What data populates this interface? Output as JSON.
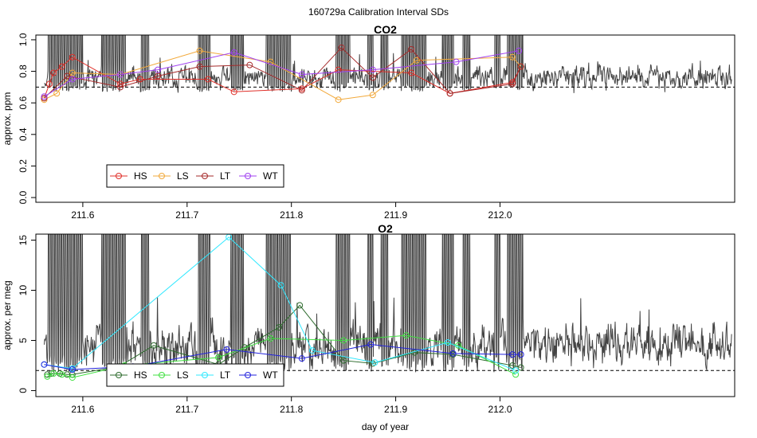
{
  "page": {
    "title": "160729a   Calibration Interval SDs"
  },
  "chart_data": [
    {
      "type": "line",
      "title": "CO2",
      "xlabel": "",
      "ylabel": "approx. ppm",
      "xlim": [
        211.555,
        212.225
      ],
      "ylim": [
        -0.03,
        1.03
      ],
      "xticks": [
        211.6,
        211.7,
        211.8,
        211.9,
        212.0
      ],
      "xtick_labels": [
        "211.6",
        "211.7",
        "211.8",
        "211.9",
        "212.0"
      ],
      "yticks": [
        0.0,
        0.2,
        0.4,
        0.6,
        0.8,
        1.0
      ],
      "ytick_labels": [
        "0.0",
        "0.2",
        "0.4",
        "0.6",
        "0.8",
        "1.0"
      ],
      "reference_line": 0.7,
      "legend": {
        "position": "bottom-left",
        "entries": [
          "HS",
          "LS",
          "LT",
          "WT"
        ]
      },
      "background": {
        "name": "raw signal",
        "color": "#444444",
        "seed": 11,
        "x_start": 211.563,
        "x_end": 212.222,
        "n_points": 1300,
        "base": 0.76,
        "noise": 0.06,
        "spike_ranges": [
          [
            211.567,
            211.6
          ],
          [
            211.618,
            211.642
          ],
          [
            211.655,
            211.664
          ],
          [
            211.71,
            211.722
          ],
          [
            211.742,
            211.754
          ],
          [
            211.776,
            211.8
          ],
          [
            211.842,
            211.856
          ],
          [
            211.872,
            211.879
          ],
          [
            211.886,
            211.893
          ],
          [
            211.905,
            211.93
          ],
          [
            211.945,
            211.956
          ],
          [
            211.964,
            211.971
          ],
          [
            211.994,
            212.0
          ],
          [
            212.007,
            212.022
          ]
        ]
      },
      "series": [
        {
          "name": "HS",
          "color": "#e0302a",
          "x": [
            211.563,
            211.568,
            211.572,
            211.58,
            211.59,
            211.636,
            211.655,
            211.72,
            211.745,
            211.81,
            211.845,
            211.915,
            211.952,
            212.012,
            212.02
          ],
          "values": [
            0.63,
            0.72,
            0.79,
            0.83,
            0.89,
            0.72,
            0.75,
            0.75,
            0.67,
            0.69,
            0.81,
            0.79,
            0.66,
            0.73,
            0.83
          ]
        },
        {
          "name": "LS",
          "color": "#f2a93b",
          "x": [
            211.563,
            211.575,
            211.59,
            211.636,
            211.712,
            211.78,
            211.845,
            211.878,
            211.92,
            212.012,
            212.02
          ],
          "values": [
            0.62,
            0.66,
            0.79,
            0.78,
            0.93,
            0.86,
            0.62,
            0.65,
            0.87,
            0.89,
            0.83
          ]
        },
        {
          "name": "LT",
          "color": "#a52a2a",
          "x": [
            211.563,
            211.585,
            211.636,
            211.672,
            211.712,
            211.76,
            211.81,
            211.848,
            211.878,
            211.915,
            211.952,
            212.012,
            212.02
          ],
          "values": [
            0.63,
            0.77,
            0.7,
            0.77,
            0.83,
            0.84,
            0.68,
            0.95,
            0.76,
            0.94,
            0.66,
            0.72,
            0.83
          ]
        },
        {
          "name": "WT",
          "color": "#a040f0",
          "x": [
            211.563,
            211.59,
            211.636,
            211.672,
            211.745,
            211.81,
            211.878,
            211.958,
            212.018
          ],
          "values": [
            0.64,
            0.75,
            0.78,
            0.81,
            0.92,
            0.78,
            0.81,
            0.86,
            0.93
          ]
        }
      ]
    },
    {
      "type": "line",
      "title": "O2",
      "xlabel": "day of year",
      "ylabel": "approx. per meg",
      "xlim": [
        211.555,
        212.225
      ],
      "ylim": [
        -0.6,
        15.6
      ],
      "xticks": [
        211.6,
        211.7,
        211.8,
        211.9,
        212.0
      ],
      "xtick_labels": [
        "211.6",
        "211.7",
        "211.8",
        "211.9",
        "212.0"
      ],
      "yticks": [
        0,
        5,
        10,
        15
      ],
      "ytick_labels": [
        "0",
        "5",
        "10",
        "15"
      ],
      "reference_line": 2.0,
      "legend": {
        "position": "bottom-left",
        "entries": [
          "HS",
          "LS",
          "LT",
          "WT"
        ]
      },
      "background": {
        "name": "raw signal",
        "color": "#444444",
        "seed": 29,
        "x_start": 211.563,
        "x_end": 212.222,
        "n_points": 1300,
        "base": 4.5,
        "noise": 1.8,
        "spike_ranges": [
          [
            211.567,
            211.6
          ],
          [
            211.618,
            211.642
          ],
          [
            211.655,
            211.664
          ],
          [
            211.71,
            211.722
          ],
          [
            211.742,
            211.754
          ],
          [
            211.776,
            211.8
          ],
          [
            211.842,
            211.856
          ],
          [
            211.872,
            211.879
          ],
          [
            211.886,
            211.893
          ],
          [
            211.905,
            211.93
          ],
          [
            211.945,
            211.956
          ],
          [
            211.964,
            211.971
          ],
          [
            211.994,
            212.0
          ],
          [
            212.007,
            212.022
          ]
        ]
      },
      "series": [
        {
          "name": "HS",
          "color": "#2e6b2e",
          "x": [
            211.566,
            211.57,
            211.578,
            211.585,
            211.59,
            211.635,
            211.668,
            211.73,
            211.755,
            211.788,
            211.808,
            211.85,
            211.878,
            211.918,
            211.955,
            212.012,
            212.02
          ],
          "values": [
            1.6,
            1.7,
            1.7,
            1.6,
            1.6,
            2.4,
            4.5,
            2.6,
            4.3,
            6.3,
            8.5,
            3.0,
            2.7,
            3.8,
            3.6,
            2.5,
            2.3
          ]
        },
        {
          "name": "LS",
          "color": "#40e040",
          "x": [
            211.566,
            211.572,
            211.58,
            211.59,
            211.64,
            211.73,
            211.78,
            211.85,
            211.91,
            211.96,
            212.015
          ],
          "values": [
            1.4,
            1.7,
            1.6,
            1.3,
            2.5,
            3.3,
            5.2,
            5.0,
            5.5,
            4.5,
            1.6
          ]
        },
        {
          "name": "LT",
          "color": "#30e8ff",
          "x": [
            211.563,
            211.59,
            211.74,
            211.79,
            211.82,
            211.88,
            211.95,
            212.015
          ],
          "values": [
            2.6,
            2.2,
            15.3,
            10.5,
            4.0,
            2.8,
            4.8,
            2.0
          ]
        },
        {
          "name": "WT",
          "color": "#2222dd",
          "x": [
            211.563,
            211.59,
            211.648,
            211.738,
            211.81,
            211.876,
            211.955,
            212.012,
            212.02
          ],
          "values": [
            2.6,
            2.1,
            2.4,
            4.1,
            3.2,
            4.6,
            3.7,
            3.6,
            3.6
          ]
        }
      ]
    }
  ]
}
